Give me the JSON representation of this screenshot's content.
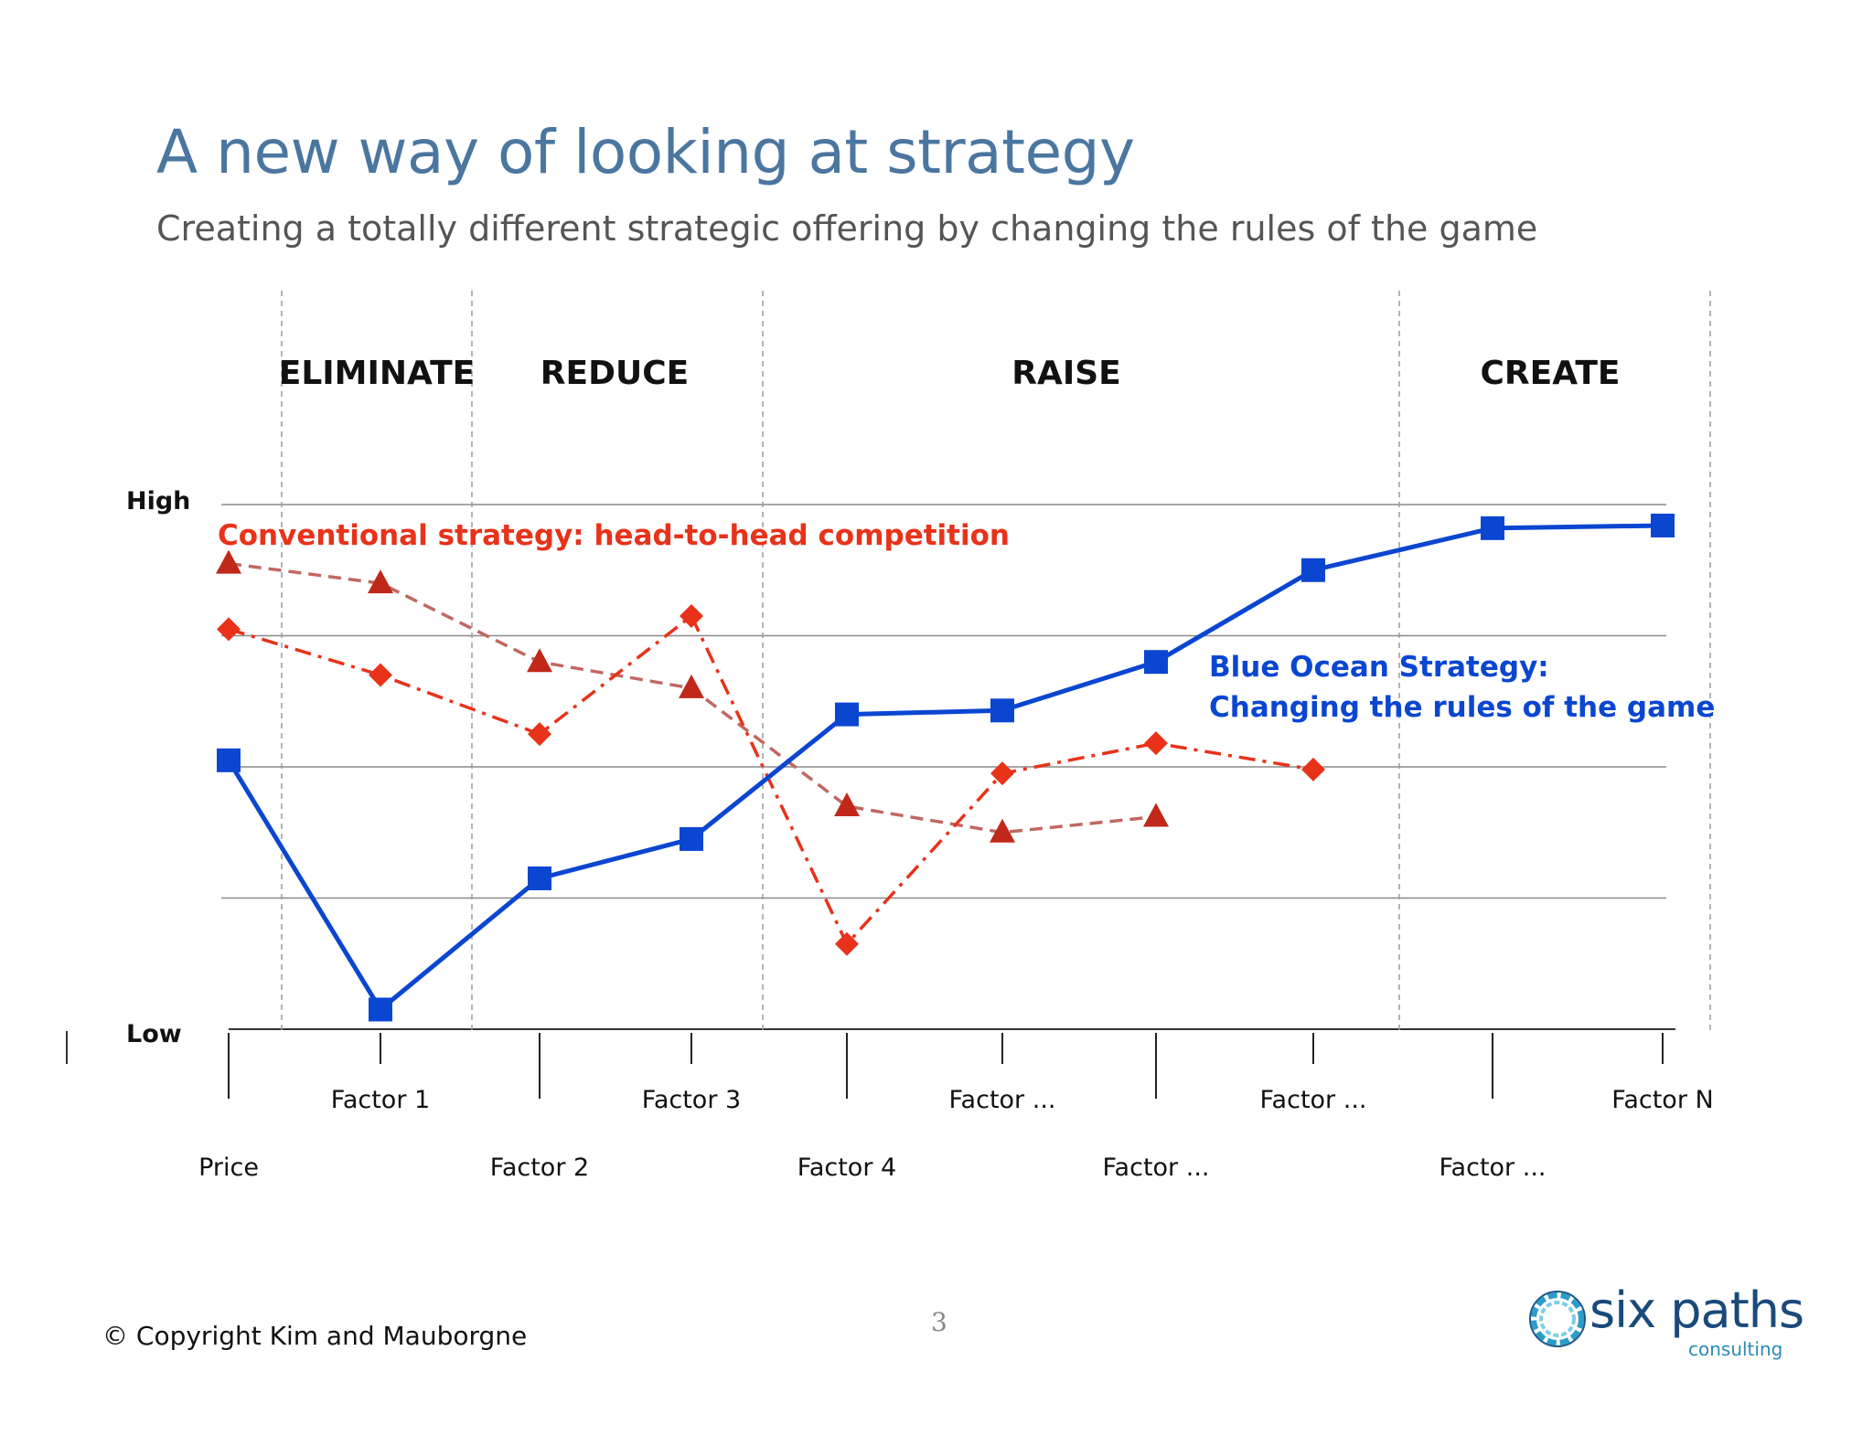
{
  "slide": {
    "title": "A new way of looking at strategy",
    "subtitle": "Creating a totally different strategic offering by changing the rules of the game",
    "copyright": "© Copyright Kim and Mauborgne",
    "page_number": "3",
    "logo": {
      "name": "six paths",
      "sub": "consulting",
      "icon": "swirl-ring-icon"
    }
  },
  "chart_data": {
    "type": "line",
    "sections": [
      "ELIMINATE",
      "REDUCE",
      "RAISE",
      "CREATE"
    ],
    "y_labels": {
      "high": "High",
      "low": "Low"
    },
    "ylim": [
      0,
      4
    ],
    "grid": true,
    "categories": [
      "Price",
      "Factor 1",
      "Factor 2",
      "Factor 3",
      "Factor 4",
      "Factor ...",
      "Factor ...",
      "Factor ...",
      "Factor ...",
      "Factor N"
    ],
    "series": [
      {
        "name": "Blue Ocean Strategy: Changing the rules of the game",
        "label_lines": [
          "Blue Ocean Strategy:",
          "Changing the rules of the game"
        ],
        "color": "#0b46d1",
        "marker": "square",
        "style": "solid",
        "values": [
          2.05,
          0.15,
          1.15,
          1.45,
          2.4,
          2.43,
          2.8,
          3.5,
          3.82,
          3.84
        ]
      },
      {
        "name": "Conventional strategy: head-to-head competition",
        "color": "#e8321a",
        "marker": "diamond",
        "style": "dash-dot",
        "values": [
          3.05,
          2.7,
          2.25,
          3.15,
          0.65,
          1.95,
          2.18,
          1.98,
          null,
          null
        ]
      },
      {
        "name": "",
        "color": "#c0281a",
        "line_color": "#c06860",
        "marker": "triangle",
        "style": "dashed",
        "values": [
          3.55,
          3.4,
          2.8,
          2.6,
          1.7,
          1.5,
          1.62,
          null,
          null,
          null
        ]
      }
    ],
    "annotations": [
      "Conventional strategy: head-to-head competition"
    ]
  }
}
